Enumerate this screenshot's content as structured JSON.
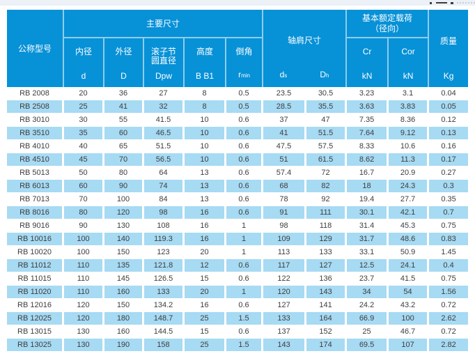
{
  "theme": {
    "header_blue": "#0791d7",
    "stripe_blue": "#a7daf3",
    "top_strip": "#ecf0f7",
    "body_text": "#3d3d3d"
  },
  "table": {
    "header": {
      "model": "公称型号",
      "main_dims": "主要尺寸",
      "shoulder": "轴肩尺寸",
      "load_line1": "基本额定载荷",
      "load_line2": "（径向）",
      "mass": "质量",
      "bore_label": "内径",
      "bore_symbol": "d",
      "outer_label": "外径",
      "outer_symbol": "D",
      "pitch_label1": "滚子节",
      "pitch_label2": "圆直径",
      "pitch_symbol": "Dpw",
      "height_label": "高度",
      "height_symbol": "B B1",
      "chamfer_label": "倒角",
      "chamfer_symbol_base": "r",
      "chamfer_symbol_sub": "min",
      "ds_base": "d",
      "ds_sub": "s",
      "dh_base": "D",
      "dh_sub": "h",
      "cr_symbol": "Cr",
      "cr_unit": "kN",
      "cor_symbol": "Cor",
      "cor_unit": "kN",
      "mass_unit": "Kg"
    },
    "rows": [
      [
        "RB 2008",
        "20",
        "36",
        "27",
        "8",
        "0.5",
        "23.5",
        "30.5",
        "3.23",
        "3.1",
        "0.04"
      ],
      [
        "RB 2508",
        "25",
        "41",
        "32",
        "8",
        "0.5",
        "28.5",
        "35.5",
        "3.63",
        "3.83",
        "0.05"
      ],
      [
        "RB 3010",
        "30",
        "55",
        "41.5",
        "10",
        "0.6",
        "37",
        "47",
        "7.35",
        "8.36",
        "0.12"
      ],
      [
        "RB 3510",
        "35",
        "60",
        "46.5",
        "10",
        "0.6",
        "41",
        "51.5",
        "7.64",
        "9.12",
        "0.13"
      ],
      [
        "RB 4010",
        "40",
        "65",
        "51.5",
        "10",
        "0.6",
        "47.5",
        "57.5",
        "8.33",
        "10.6",
        "0.16"
      ],
      [
        "RB 4510",
        "45",
        "70",
        "56.5",
        "10",
        "0.6",
        "51",
        "61.5",
        "8.62",
        "11.3",
        "0.17"
      ],
      [
        "RB 5013",
        "50",
        "80",
        "64",
        "13",
        "0.6",
        "57.4",
        "72",
        "16.7",
        "20.9",
        "0.27"
      ],
      [
        "RB 6013",
        "60",
        "90",
        "74",
        "13",
        "0.6",
        "68",
        "82",
        "18",
        "24.3",
        "0.3"
      ],
      [
        "RB 7013",
        "70",
        "100",
        "84",
        "13",
        "0.6",
        "78",
        "92",
        "19.4",
        "27.7",
        "0.35"
      ],
      [
        "RB 8016",
        "80",
        "120",
        "98",
        "16",
        "0.6",
        "91",
        "111",
        "30.1",
        "42.1",
        "0.7"
      ],
      [
        "RB 9016",
        "90",
        "130",
        "108",
        "16",
        "1",
        "98",
        "118",
        "31.4",
        "45.3",
        "0.75"
      ],
      [
        "RB 10016",
        "100",
        "140",
        "119.3",
        "16",
        "1",
        "109",
        "129",
        "31.7",
        "48.6",
        "0.83"
      ],
      [
        "RB 10020",
        "100",
        "150",
        "123",
        "20",
        "1",
        "113",
        "133",
        "33.1",
        "50.9",
        "1.45"
      ],
      [
        "RB 11012",
        "110",
        "135",
        "121.8",
        "12",
        "0.6",
        "117",
        "127",
        "12.5",
        "24.1",
        "0.4"
      ],
      [
        "RB 11015",
        "110",
        "145",
        "126.5",
        "15",
        "0.6",
        "122",
        "136",
        "23.7",
        "41.5",
        "0.75"
      ],
      [
        "RB 11020",
        "110",
        "160",
        "133",
        "20",
        "1",
        "120",
        "143",
        "34",
        "54",
        "1.56"
      ],
      [
        "RB 12016",
        "120",
        "150",
        "134.2",
        "16",
        "0.6",
        "127",
        "141",
        "24.2",
        "43.2",
        "0.72"
      ],
      [
        "RB 12025",
        "120",
        "180",
        "148.7",
        "25",
        "1.5",
        "133",
        "164",
        "66.9",
        "100",
        "2.62"
      ],
      [
        "RB 13015",
        "130",
        "160",
        "144.5",
        "15",
        "0.6",
        "137",
        "152",
        "25",
        "46.7",
        "0.72"
      ],
      [
        "RB 13025",
        "130",
        "190",
        "158",
        "25",
        "1.5",
        "143",
        "174",
        "69.5",
        "107",
        "2.82"
      ]
    ]
  }
}
